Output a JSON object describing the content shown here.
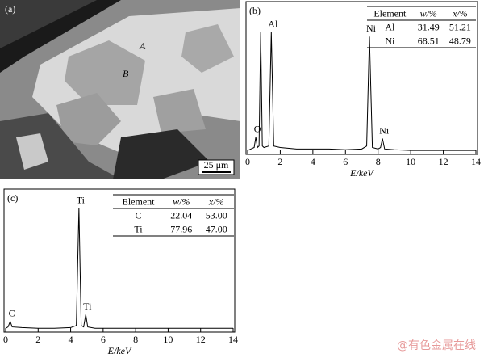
{
  "figure": {
    "panel_a": {
      "label": "(a)",
      "regions": [
        "A",
        "B"
      ],
      "scale_bar": "25 μm"
    },
    "watermark": "@有色金属在线"
  },
  "chart_data": [
    {
      "type": "line",
      "title": "(b)",
      "x_label": "E/keV",
      "color": "#000000",
      "x": [
        0,
        0.2,
        0.4,
        0.5,
        0.6,
        0.7,
        0.8,
        0.9,
        1.0,
        1.3,
        1.45,
        1.6,
        2,
        3,
        4,
        5,
        6,
        7,
        7.3,
        7.47,
        7.65,
        8.0,
        8.15,
        8.27,
        8.4,
        9,
        10,
        11,
        12,
        13,
        14
      ],
      "values": [
        1,
        2,
        3,
        10,
        3,
        4,
        81,
        4,
        3,
        4,
        81,
        4,
        3,
        2,
        2,
        2,
        1.5,
        2,
        4,
        78,
        3,
        2,
        3,
        9,
        2,
        1.5,
        1,
        1,
        1,
        1,
        1
      ],
      "xlim": [
        0,
        14
      ],
      "xticks": [
        0,
        2,
        4,
        6,
        8,
        10,
        12,
        14
      ],
      "ylim": [
        0,
        100
      ],
      "annotations": [
        {
          "text": "O",
          "x": 0.5
        },
        {
          "text": "Al",
          "x": 1.45
        },
        {
          "text": "Ni",
          "x": 7.47
        },
        {
          "text": "Ni",
          "x": 8.27
        }
      ],
      "table": {
        "header": [
          "Element",
          "w/%",
          "x/%"
        ],
        "rows": [
          [
            "Al",
            "31.49",
            "51.21"
          ],
          [
            "Ni",
            "68.51",
            "48.79"
          ]
        ]
      }
    },
    {
      "type": "line",
      "title": "(c)",
      "x_label": "E/keV",
      "color": "#000000",
      "x": [
        0,
        0.15,
        0.28,
        0.4,
        1,
        2,
        3,
        4,
        4.35,
        4.51,
        4.65,
        4.8,
        4.93,
        5.05,
        5.5,
        6,
        7,
        8,
        9,
        10,
        11,
        12,
        13,
        14
      ],
      "values": [
        1,
        2,
        6,
        2,
        1.5,
        1,
        1,
        1.5,
        3,
        88,
        3,
        2,
        11,
        2,
        1,
        1,
        1,
        1,
        1,
        1,
        1,
        1,
        1,
        1
      ],
      "xlim": [
        0,
        14
      ],
      "xticks": [
        0,
        2,
        4,
        6,
        8,
        10,
        12,
        14
      ],
      "ylim": [
        0,
        100
      ],
      "annotations": [
        {
          "text": "C",
          "x": 0.28
        },
        {
          "text": "Ti",
          "x": 4.51
        },
        {
          "text": "Ti",
          "x": 4.93
        }
      ],
      "table": {
        "header": [
          "Element",
          "w/%",
          "x/%"
        ],
        "rows": [
          [
            "C",
            "22.04",
            "53.00"
          ],
          [
            "Ti",
            "77.96",
            "47.00"
          ]
        ]
      }
    }
  ]
}
